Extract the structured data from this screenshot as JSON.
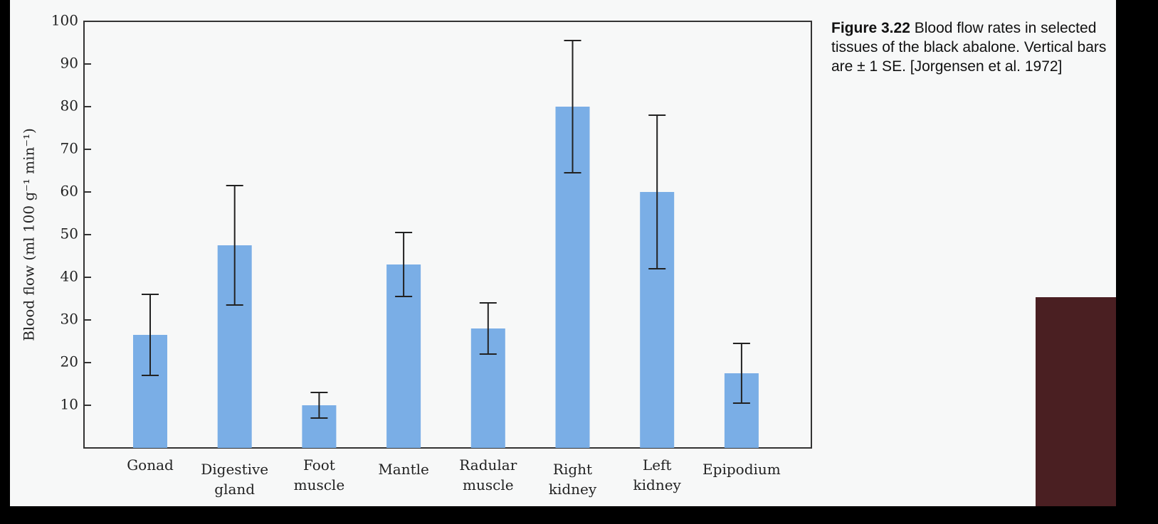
{
  "chart_data": {
    "type": "bar",
    "caption_label": "Figure 3.22",
    "caption": "Blood flow rates in selected tissues of the black abalone. Vertical bars are ± 1 SE. [Jorgensen et al. 1972]",
    "y_label": "Blood flow (ml 100 g⁻¹ min⁻¹)",
    "categories": [
      "Gonad",
      "Digestive gland",
      "Foot muscle",
      "Mantle",
      "Radular muscle",
      "Right kidney",
      "Left kidney",
      "Epipodium"
    ],
    "values": [
      26.5,
      47.5,
      10,
      43,
      28,
      80,
      60,
      17.5
    ],
    "errors": [
      9.5,
      14,
      3,
      7.5,
      6,
      15.5,
      18,
      7
    ],
    "color": "#7aaee6",
    "ylim": [
      0,
      100
    ],
    "yticks": [
      10,
      20,
      30,
      40,
      50,
      60,
      70,
      80,
      90,
      100
    ]
  }
}
